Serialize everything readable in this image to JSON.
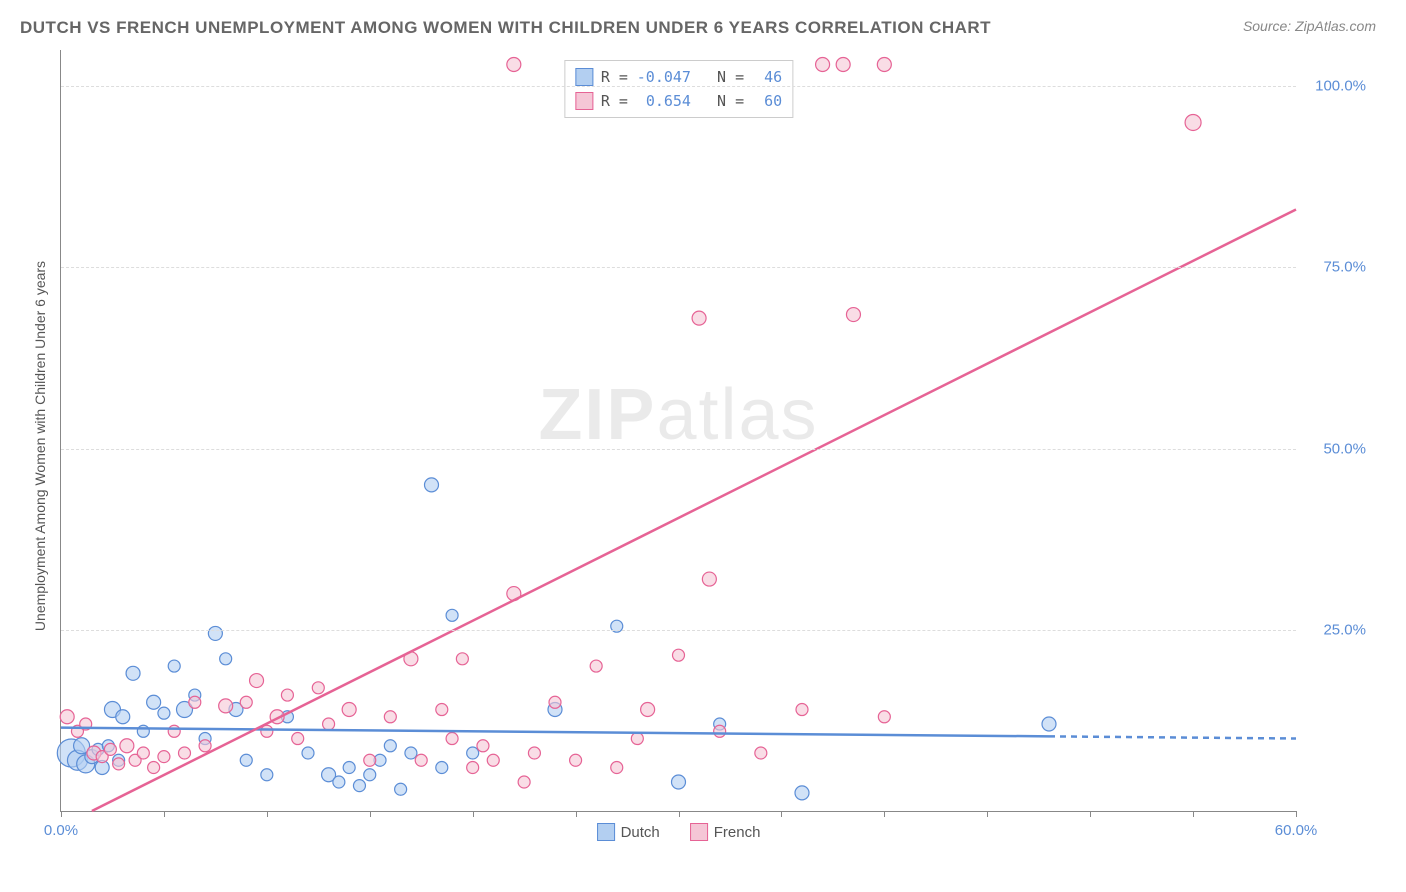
{
  "title": "DUTCH VS FRENCH UNEMPLOYMENT AMONG WOMEN WITH CHILDREN UNDER 6 YEARS CORRELATION CHART",
  "source": "Source: ZipAtlas.com",
  "watermark_bold": "ZIP",
  "watermark_light": "atlas",
  "y_axis_title": "Unemployment Among Women with Children Under 6 years",
  "chart": {
    "type": "scatter",
    "background_color": "#ffffff",
    "grid_color": "#dddddd",
    "axis_color": "#888888",
    "tick_color": "#5b8dd6",
    "xlim": [
      0,
      60
    ],
    "ylim": [
      0,
      105
    ],
    "xticks": [
      0,
      5,
      10,
      15,
      20,
      25,
      30,
      35,
      40,
      45,
      50,
      55,
      60
    ],
    "xtick_labels": {
      "0": "0.0%",
      "60": "60.0%"
    },
    "yticks": [
      25,
      50,
      75,
      100
    ],
    "ytick_labels": [
      "25.0%",
      "50.0%",
      "75.0%",
      "100.0%"
    ],
    "series": [
      {
        "name": "Dutch",
        "color_fill": "#b3cff1",
        "color_stroke": "#5b8dd6",
        "r_value": "-0.047",
        "n_value": "46",
        "regression": {
          "x1": 0,
          "y1": 11.5,
          "x2": 60,
          "y2": 10.0,
          "solid_until_x": 48
        },
        "points": [
          {
            "x": 0.5,
            "y": 8,
            "r": 14
          },
          {
            "x": 0.8,
            "y": 7,
            "r": 10
          },
          {
            "x": 1.0,
            "y": 9,
            "r": 8
          },
          {
            "x": 1.2,
            "y": 6.5,
            "r": 9
          },
          {
            "x": 1.5,
            "y": 7.5,
            "r": 7
          },
          {
            "x": 1.8,
            "y": 8.5,
            "r": 6
          },
          {
            "x": 2.0,
            "y": 6,
            "r": 7
          },
          {
            "x": 2.3,
            "y": 9,
            "r": 6
          },
          {
            "x": 2.5,
            "y": 14,
            "r": 8
          },
          {
            "x": 2.8,
            "y": 7,
            "r": 6
          },
          {
            "x": 3.0,
            "y": 13,
            "r": 7
          },
          {
            "x": 3.5,
            "y": 19,
            "r": 7
          },
          {
            "x": 4.0,
            "y": 11,
            "r": 6
          },
          {
            "x": 4.5,
            "y": 15,
            "r": 7
          },
          {
            "x": 5.0,
            "y": 13.5,
            "r": 6
          },
          {
            "x": 5.5,
            "y": 20,
            "r": 6
          },
          {
            "x": 6.0,
            "y": 14,
            "r": 8
          },
          {
            "x": 6.5,
            "y": 16,
            "r": 6
          },
          {
            "x": 7.0,
            "y": 10,
            "r": 6
          },
          {
            "x": 7.5,
            "y": 24.5,
            "r": 7
          },
          {
            "x": 8.0,
            "y": 21,
            "r": 6
          },
          {
            "x": 8.5,
            "y": 14,
            "r": 7
          },
          {
            "x": 9.0,
            "y": 7,
            "r": 6
          },
          {
            "x": 10.0,
            "y": 5,
            "r": 6
          },
          {
            "x": 11.0,
            "y": 13,
            "r": 6
          },
          {
            "x": 12.0,
            "y": 8,
            "r": 6
          },
          {
            "x": 13.0,
            "y": 5,
            "r": 7
          },
          {
            "x": 13.5,
            "y": 4,
            "r": 6
          },
          {
            "x": 14.0,
            "y": 6,
            "r": 6
          },
          {
            "x": 14.5,
            "y": 3.5,
            "r": 6
          },
          {
            "x": 15.0,
            "y": 5,
            "r": 6
          },
          {
            "x": 15.5,
            "y": 7,
            "r": 6
          },
          {
            "x": 16.0,
            "y": 9,
            "r": 6
          },
          {
            "x": 16.5,
            "y": 3,
            "r": 6
          },
          {
            "x": 17.0,
            "y": 8,
            "r": 6
          },
          {
            "x": 18.0,
            "y": 45,
            "r": 7
          },
          {
            "x": 18.5,
            "y": 6,
            "r": 6
          },
          {
            "x": 19.0,
            "y": 27,
            "r": 6
          },
          {
            "x": 20.0,
            "y": 8,
            "r": 6
          },
          {
            "x": 24.0,
            "y": 14,
            "r": 7
          },
          {
            "x": 27.0,
            "y": 25.5,
            "r": 6
          },
          {
            "x": 30.0,
            "y": 4,
            "r": 7
          },
          {
            "x": 32.0,
            "y": 12,
            "r": 6
          },
          {
            "x": 36.0,
            "y": 2.5,
            "r": 7
          },
          {
            "x": 48.0,
            "y": 12,
            "r": 7
          }
        ]
      },
      {
        "name": "French",
        "color_fill": "#f5c6d6",
        "color_stroke": "#e66395",
        "r_value": "0.654",
        "n_value": "60",
        "regression": {
          "x1": 1.5,
          "y1": 0,
          "x2": 60,
          "y2": 83,
          "solid_until_x": 60
        },
        "points": [
          {
            "x": 0.3,
            "y": 13,
            "r": 7
          },
          {
            "x": 0.8,
            "y": 11,
            "r": 6
          },
          {
            "x": 1.2,
            "y": 12,
            "r": 6
          },
          {
            "x": 1.6,
            "y": 8,
            "r": 7
          },
          {
            "x": 2.0,
            "y": 7.5,
            "r": 6
          },
          {
            "x": 2.4,
            "y": 8.5,
            "r": 6
          },
          {
            "x": 2.8,
            "y": 6.5,
            "r": 6
          },
          {
            "x": 3.2,
            "y": 9,
            "r": 7
          },
          {
            "x": 3.6,
            "y": 7,
            "r": 6
          },
          {
            "x": 4.0,
            "y": 8,
            "r": 6
          },
          {
            "x": 4.5,
            "y": 6,
            "r": 6
          },
          {
            "x": 5.0,
            "y": 7.5,
            "r": 6
          },
          {
            "x": 5.5,
            "y": 11,
            "r": 6
          },
          {
            "x": 6.0,
            "y": 8,
            "r": 6
          },
          {
            "x": 6.5,
            "y": 15,
            "r": 6
          },
          {
            "x": 7.0,
            "y": 9,
            "r": 6
          },
          {
            "x": 8.0,
            "y": 14.5,
            "r": 7
          },
          {
            "x": 9.0,
            "y": 15,
            "r": 6
          },
          {
            "x": 9.5,
            "y": 18,
            "r": 7
          },
          {
            "x": 10.0,
            "y": 11,
            "r": 6
          },
          {
            "x": 10.5,
            "y": 13,
            "r": 7
          },
          {
            "x": 11.0,
            "y": 16,
            "r": 6
          },
          {
            "x": 11.5,
            "y": 10,
            "r": 6
          },
          {
            "x": 12.5,
            "y": 17,
            "r": 6
          },
          {
            "x": 13.0,
            "y": 12,
            "r": 6
          },
          {
            "x": 14.0,
            "y": 14,
            "r": 7
          },
          {
            "x": 15.0,
            "y": 7,
            "r": 6
          },
          {
            "x": 16.0,
            "y": 13,
            "r": 6
          },
          {
            "x": 17.0,
            "y": 21,
            "r": 7
          },
          {
            "x": 17.5,
            "y": 7,
            "r": 6
          },
          {
            "x": 18.5,
            "y": 14,
            "r": 6
          },
          {
            "x": 19.0,
            "y": 10,
            "r": 6
          },
          {
            "x": 19.5,
            "y": 21,
            "r": 6
          },
          {
            "x": 20.0,
            "y": 6,
            "r": 6
          },
          {
            "x": 20.5,
            "y": 9,
            "r": 6
          },
          {
            "x": 21.0,
            "y": 7,
            "r": 6
          },
          {
            "x": 22.0,
            "y": 30,
            "r": 7
          },
          {
            "x": 22.5,
            "y": 4,
            "r": 6
          },
          {
            "x": 23.0,
            "y": 8,
            "r": 6
          },
          {
            "x": 24.0,
            "y": 15,
            "r": 6
          },
          {
            "x": 25.0,
            "y": 7,
            "r": 6
          },
          {
            "x": 26.0,
            "y": 20,
            "r": 6
          },
          {
            "x": 27.0,
            "y": 6,
            "r": 6
          },
          {
            "x": 28.0,
            "y": 10,
            "r": 6
          },
          {
            "x": 28.5,
            "y": 14,
            "r": 7
          },
          {
            "x": 30.0,
            "y": 21.5,
            "r": 6
          },
          {
            "x": 31.0,
            "y": 68,
            "r": 7
          },
          {
            "x": 31.5,
            "y": 32,
            "r": 7
          },
          {
            "x": 32.0,
            "y": 11,
            "r": 6
          },
          {
            "x": 34.0,
            "y": 8,
            "r": 6
          },
          {
            "x": 36.0,
            "y": 14,
            "r": 6
          },
          {
            "x": 37.0,
            "y": 103,
            "r": 7
          },
          {
            "x": 38.0,
            "y": 103,
            "r": 7
          },
          {
            "x": 38.5,
            "y": 68.5,
            "r": 7
          },
          {
            "x": 40.0,
            "y": 103,
            "r": 7
          },
          {
            "x": 40.0,
            "y": 13,
            "r": 6
          },
          {
            "x": 22.0,
            "y": 103,
            "r": 7
          },
          {
            "x": 55.0,
            "y": 95,
            "r": 8
          }
        ]
      }
    ]
  },
  "bottom_legend": [
    {
      "label": "Dutch",
      "fill": "#b3cff1",
      "stroke": "#5b8dd6"
    },
    {
      "label": "French",
      "fill": "#f5c6d6",
      "stroke": "#e66395"
    }
  ]
}
